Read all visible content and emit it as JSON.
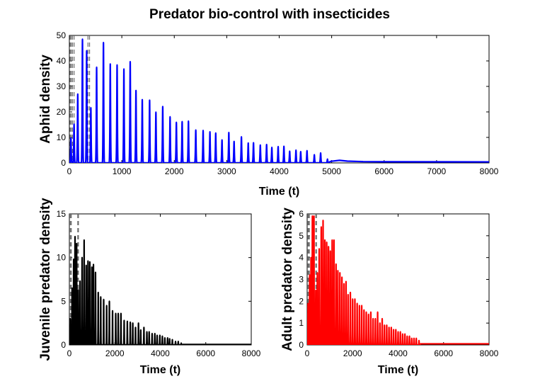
{
  "figure_title": "Predator bio-control with insecticides",
  "chart_data": [
    {
      "id": "aphid",
      "type": "line",
      "color": "#0000ff",
      "title": "Predator bio-control with insecticides",
      "xlabel": "Time (t)",
      "ylabel": "Aphid density",
      "xlim": [
        0,
        8000
      ],
      "ylim": [
        0,
        50
      ],
      "xticks": [
        0,
        1000,
        2000,
        3000,
        4000,
        5000,
        6000,
        7000,
        8000
      ],
      "yticks": [
        0,
        10,
        20,
        30,
        40,
        50
      ],
      "spray_lines": [
        15,
        35,
        60,
        90,
        355,
        385
      ],
      "peaks": [
        {
          "t": 30,
          "v": 9.8
        },
        {
          "t": 90,
          "v": 15.2
        },
        {
          "t": 160,
          "v": 27
        },
        {
          "t": 250,
          "v": 48.5
        },
        {
          "t": 330,
          "v": 44
        },
        {
          "t": 410,
          "v": 21.6
        },
        {
          "t": 520,
          "v": 37.5
        },
        {
          "t": 650,
          "v": 47.2
        },
        {
          "t": 780,
          "v": 38.8
        },
        {
          "t": 910,
          "v": 38.4
        },
        {
          "t": 1040,
          "v": 36.8
        },
        {
          "t": 1160,
          "v": 39.7
        },
        {
          "t": 1270,
          "v": 28.4
        },
        {
          "t": 1390,
          "v": 24.8
        },
        {
          "t": 1530,
          "v": 24.6
        },
        {
          "t": 1650,
          "v": 19.9
        },
        {
          "t": 1780,
          "v": 22.1
        },
        {
          "t": 1920,
          "v": 18.1
        },
        {
          "t": 2040,
          "v": 15.9
        },
        {
          "t": 2150,
          "v": 16.2
        },
        {
          "t": 2270,
          "v": 16.4
        },
        {
          "t": 2410,
          "v": 12.9
        },
        {
          "t": 2550,
          "v": 12.7
        },
        {
          "t": 2680,
          "v": 12.2
        },
        {
          "t": 2790,
          "v": 11.7
        },
        {
          "t": 2910,
          "v": 9.0
        },
        {
          "t": 3040,
          "v": 11.9
        },
        {
          "t": 3140,
          "v": 8.4
        },
        {
          "t": 3280,
          "v": 10.2
        },
        {
          "t": 3410,
          "v": 7.8
        },
        {
          "t": 3510,
          "v": 7.9
        },
        {
          "t": 3640,
          "v": 7.0
        },
        {
          "t": 3760,
          "v": 7.2
        },
        {
          "t": 3860,
          "v": 6.1
        },
        {
          "t": 3980,
          "v": 6.4
        },
        {
          "t": 4090,
          "v": 6.5
        },
        {
          "t": 4200,
          "v": 4.6
        },
        {
          "t": 4320,
          "v": 5.0
        },
        {
          "t": 4410,
          "v": 4.4
        },
        {
          "t": 4530,
          "v": 4.8
        },
        {
          "t": 4670,
          "v": 3.2
        },
        {
          "t": 4790,
          "v": 3.9
        },
        {
          "t": 4920,
          "v": 1.5
        }
      ],
      "tail": [
        {
          "t": 4980,
          "v": 0.6
        },
        {
          "t": 5150,
          "v": 1.0
        },
        {
          "t": 5300,
          "v": 0.7
        },
        {
          "t": 5600,
          "v": 0.5
        },
        {
          "t": 6000,
          "v": 0.45
        },
        {
          "t": 8000,
          "v": 0.4
        }
      ]
    },
    {
      "id": "juvenile",
      "type": "line",
      "color": "#000000",
      "xlabel": "Time (t)",
      "ylabel": "Juvenile predator density",
      "xlim": [
        0,
        8000
      ],
      "ylim": [
        0,
        15
      ],
      "xticks": [
        0,
        2000,
        4000,
        6000,
        8000
      ],
      "yticks": [
        0,
        5,
        10,
        15
      ],
      "spray_lines": [
        20,
        55,
        85,
        370,
        400
      ],
      "peaks": [
        {
          "t": 40,
          "v": 3.0
        },
        {
          "t": 120,
          "v": 6.5
        },
        {
          "t": 190,
          "v": 9.8
        },
        {
          "t": 250,
          "v": 12.4
        },
        {
          "t": 320,
          "v": 11.6
        },
        {
          "t": 390,
          "v": 6.3
        },
        {
          "t": 470,
          "v": 7.3
        },
        {
          "t": 560,
          "v": 10.0
        },
        {
          "t": 650,
          "v": 12.0
        },
        {
          "t": 740,
          "v": 9.1
        },
        {
          "t": 820,
          "v": 9.6
        },
        {
          "t": 900,
          "v": 9.5
        },
        {
          "t": 990,
          "v": 8.9
        },
        {
          "t": 1060,
          "v": 9.2
        },
        {
          "t": 1150,
          "v": 8.3
        },
        {
          "t": 1270,
          "v": 6.0
        },
        {
          "t": 1380,
          "v": 5.5
        },
        {
          "t": 1510,
          "v": 5.2
        },
        {
          "t": 1640,
          "v": 4.5
        },
        {
          "t": 1760,
          "v": 5.0
        },
        {
          "t": 1900,
          "v": 3.9
        },
        {
          "t": 2040,
          "v": 3.6
        },
        {
          "t": 2150,
          "v": 3.6
        },
        {
          "t": 2270,
          "v": 3.6
        },
        {
          "t": 2410,
          "v": 2.8
        },
        {
          "t": 2550,
          "v": 2.7
        },
        {
          "t": 2680,
          "v": 2.6
        },
        {
          "t": 2790,
          "v": 2.5
        },
        {
          "t": 2910,
          "v": 2.0
        },
        {
          "t": 3040,
          "v": 2.5
        },
        {
          "t": 3140,
          "v": 1.7
        },
        {
          "t": 3280,
          "v": 2.0
        },
        {
          "t": 3410,
          "v": 1.5
        },
        {
          "t": 3510,
          "v": 1.5
        },
        {
          "t": 3640,
          "v": 1.3
        },
        {
          "t": 3760,
          "v": 1.3
        },
        {
          "t": 3860,
          "v": 1.1
        },
        {
          "t": 3980,
          "v": 1.1
        },
        {
          "t": 4090,
          "v": 1.0
        },
        {
          "t": 4200,
          "v": 0.8
        },
        {
          "t": 4320,
          "v": 0.8
        },
        {
          "t": 4410,
          "v": 0.7
        },
        {
          "t": 4530,
          "v": 0.6
        },
        {
          "t": 4670,
          "v": 0.4
        },
        {
          "t": 4790,
          "v": 0.4
        },
        {
          "t": 4920,
          "v": 0.2
        }
      ],
      "tail": [
        {
          "t": 5000,
          "v": 0.05
        },
        {
          "t": 8000,
          "v": 0.05
        }
      ]
    },
    {
      "id": "adult",
      "type": "line",
      "color": "#ff0000",
      "xlabel": "Time (t)",
      "ylabel": "Adult predator density",
      "xlim": [
        0,
        8000
      ],
      "ylim": [
        0,
        6
      ],
      "xticks": [
        0,
        2000,
        4000,
        6000,
        8000
      ],
      "yticks": [
        0,
        1,
        2,
        3,
        4,
        5,
        6
      ],
      "spray_lines": [
        25,
        60,
        95,
        380,
        410
      ],
      "peaks": [
        {
          "t": 40,
          "v": 1.9
        },
        {
          "t": 110,
          "v": 3.2
        },
        {
          "t": 170,
          "v": 4.0
        },
        {
          "t": 230,
          "v": 5.9
        },
        {
          "t": 300,
          "v": 5.9
        },
        {
          "t": 380,
          "v": 2.5
        },
        {
          "t": 450,
          "v": 3.3
        },
        {
          "t": 530,
          "v": 4.4
        },
        {
          "t": 620,
          "v": 5.4
        },
        {
          "t": 700,
          "v": 5.7
        },
        {
          "t": 780,
          "v": 4.8
        },
        {
          "t": 860,
          "v": 4.7
        },
        {
          "t": 940,
          "v": 4.5
        },
        {
          "t": 1020,
          "v": 4.3
        },
        {
          "t": 1100,
          "v": 4.8
        },
        {
          "t": 1180,
          "v": 4.8
        },
        {
          "t": 1270,
          "v": 3.7
        },
        {
          "t": 1350,
          "v": 3.4
        },
        {
          "t": 1440,
          "v": 3.3
        },
        {
          "t": 1530,
          "v": 3.1
        },
        {
          "t": 1620,
          "v": 2.8
        },
        {
          "t": 1710,
          "v": 2.9
        },
        {
          "t": 1800,
          "v": 2.3
        },
        {
          "t": 1900,
          "v": 2.4
        },
        {
          "t": 2000,
          "v": 2.1
        },
        {
          "t": 2100,
          "v": 2.1
        },
        {
          "t": 2200,
          "v": 1.9
        },
        {
          "t": 2300,
          "v": 1.8
        },
        {
          "t": 2400,
          "v": 1.8
        },
        {
          "t": 2500,
          "v": 1.6
        },
        {
          "t": 2600,
          "v": 1.5
        },
        {
          "t": 2700,
          "v": 1.4
        },
        {
          "t": 2800,
          "v": 1.5
        },
        {
          "t": 2900,
          "v": 1.2
        },
        {
          "t": 3000,
          "v": 1.2
        },
        {
          "t": 3100,
          "v": 1.5
        },
        {
          "t": 3200,
          "v": 1.0
        },
        {
          "t": 3300,
          "v": 1.2
        },
        {
          "t": 3400,
          "v": 0.9
        },
        {
          "t": 3500,
          "v": 0.9
        },
        {
          "t": 3600,
          "v": 0.8
        },
        {
          "t": 3700,
          "v": 0.8
        },
        {
          "t": 3800,
          "v": 0.7
        },
        {
          "t": 3900,
          "v": 0.7
        },
        {
          "t": 4000,
          "v": 0.6
        },
        {
          "t": 4100,
          "v": 0.6
        },
        {
          "t": 4200,
          "v": 0.5
        },
        {
          "t": 4300,
          "v": 0.5
        },
        {
          "t": 4400,
          "v": 0.4
        },
        {
          "t": 4500,
          "v": 0.4
        },
        {
          "t": 4600,
          "v": 0.3
        },
        {
          "t": 4700,
          "v": 0.3
        },
        {
          "t": 4800,
          "v": 0.3
        },
        {
          "t": 4920,
          "v": 0.2
        }
      ],
      "tail": [
        {
          "t": 5000,
          "v": 0.05
        },
        {
          "t": 8000,
          "v": 0.05
        }
      ]
    }
  ]
}
